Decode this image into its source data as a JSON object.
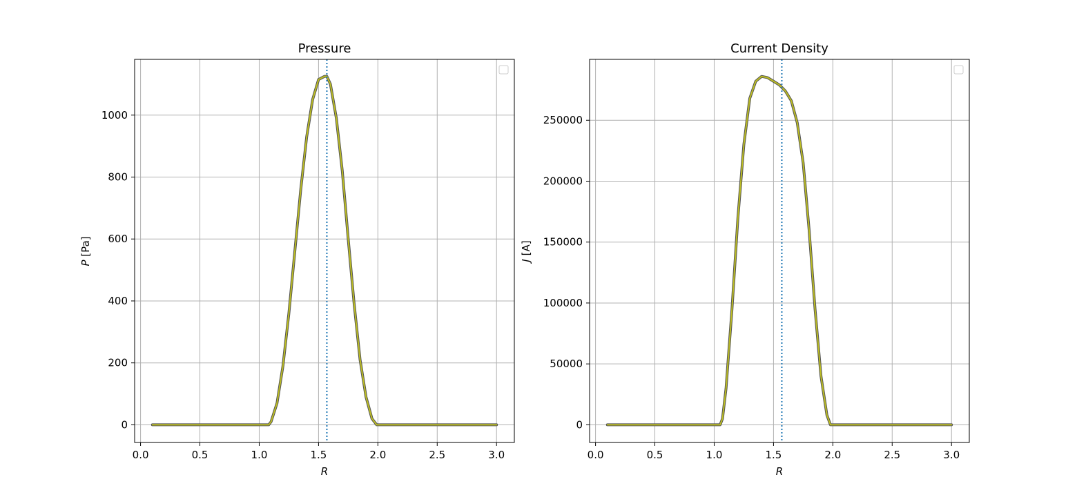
{
  "colors": {
    "grid": "#b0b0b0",
    "curve_dark": "#555555",
    "curve": "#bcbd22",
    "marker_line": "#1f77b4",
    "axes": "#000000"
  },
  "chart_data": [
    {
      "type": "line",
      "title": "Pressure",
      "xlabel": "R",
      "ylabel_sym": "P",
      "ylabel_unit": " [Pa]",
      "xlim": [
        -0.05,
        3.15
      ],
      "ylim": [
        -57,
        1180
      ],
      "grid": true,
      "legend": "top-right (empty)",
      "xticks": [
        0.0,
        0.5,
        1.0,
        1.5,
        2.0,
        2.5,
        3.0
      ],
      "xtick_labels": [
        "0.0",
        "0.5",
        "1.0",
        "1.5",
        "2.0",
        "2.5",
        "3.0"
      ],
      "yticks": [
        0,
        200,
        400,
        600,
        800,
        1000
      ],
      "ytick_labels": [
        "0",
        "200",
        "400",
        "600",
        "800",
        "1000"
      ],
      "vline_x": 1.57,
      "series": [
        {
          "x": [
            0.1,
            0.5,
            1.0,
            1.08,
            1.1,
            1.15,
            1.2,
            1.25,
            1.3,
            1.35,
            1.4,
            1.45,
            1.5,
            1.55,
            1.57,
            1.6,
            1.65,
            1.7,
            1.75,
            1.8,
            1.85,
            1.9,
            1.95,
            1.99,
            2.0,
            2.5,
            3.0
          ],
          "y": [
            0,
            0,
            0,
            0,
            10,
            70,
            190,
            360,
            560,
            760,
            930,
            1050,
            1115,
            1125,
            1125,
            1100,
            990,
            820,
            600,
            390,
            210,
            90,
            20,
            0,
            0,
            0,
            0
          ]
        }
      ]
    },
    {
      "type": "line",
      "title": "Current Density",
      "xlabel": "R",
      "ylabel_sym": "J",
      "ylabel_unit": " [A]",
      "xlim": [
        -0.05,
        3.15
      ],
      "ylim": [
        -14500,
        300000
      ],
      "grid": true,
      "legend": "top-right (empty)",
      "xticks": [
        0.0,
        0.5,
        1.0,
        1.5,
        2.0,
        2.5,
        3.0
      ],
      "xtick_labels": [
        "0.0",
        "0.5",
        "1.0",
        "1.5",
        "2.0",
        "2.5",
        "3.0"
      ],
      "yticks": [
        0,
        50000,
        100000,
        150000,
        200000,
        250000
      ],
      "ytick_labels": [
        "0",
        "50000",
        "100000",
        "150000",
        "200000",
        "250000"
      ],
      "vline_x": 1.57,
      "series": [
        {
          "x": [
            0.1,
            0.5,
            1.0,
            1.05,
            1.07,
            1.1,
            1.15,
            1.2,
            1.25,
            1.3,
            1.35,
            1.4,
            1.45,
            1.5,
            1.55,
            1.6,
            1.65,
            1.7,
            1.75,
            1.8,
            1.85,
            1.9,
            1.95,
            1.98,
            2.0,
            2.5,
            3.0
          ],
          "y": [
            0,
            0,
            0,
            0,
            5000,
            30000,
            95000,
            170000,
            230000,
            268000,
            282000,
            286000,
            285000,
            282000,
            279000,
            274000,
            266000,
            248000,
            215000,
            160000,
            95000,
            40000,
            8000,
            0,
            0,
            0,
            0
          ]
        }
      ]
    }
  ]
}
